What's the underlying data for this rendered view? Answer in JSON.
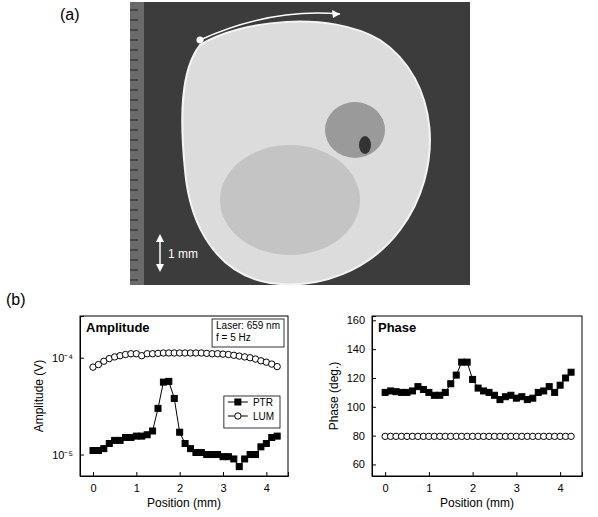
{
  "figure": {
    "panel_labels": [
      "(a)",
      "(b)"
    ],
    "photo": {
      "scale_bar_label": "1 mm"
    }
  },
  "chart_data": [
    {
      "type": "line",
      "title": "Amplitude",
      "x_label": "Position (mm)",
      "y_label": "Amplitude (V)",
      "annotations": [
        "Laser: 659 nm",
        "f = 5 Hz"
      ],
      "log": "y",
      "legend": "right",
      "x": [
        0,
        0.125,
        0.25,
        0.375,
        0.5,
        0.625,
        0.75,
        0.875,
        1.0,
        1.125,
        1.25,
        1.375,
        1.5,
        1.625,
        1.75,
        1.875,
        2.0,
        2.125,
        2.25,
        2.375,
        2.5,
        2.625,
        2.75,
        2.875,
        3.0,
        3.125,
        3.25,
        3.375,
        3.5,
        3.625,
        3.75,
        3.875,
        4.0,
        4.125,
        4.25
      ],
      "xlim": [
        -0.3,
        4.5
      ],
      "xticks": [
        0,
        1,
        2,
        3,
        4
      ],
      "ylim": [
        6e-06,
        0.00027
      ],
      "yticks": [
        {
          "value": 1e-05,
          "label": "10⁻⁵"
        },
        {
          "value": 0.0001,
          "label": "10⁻⁴"
        }
      ],
      "series": [
        {
          "name": "PTR",
          "color": "#000000",
          "marker": "square",
          "line_style": "solid",
          "values": [
            1.1e-05,
            1.1e-05,
            1.15e-05,
            1.3e-05,
            1.4e-05,
            1.4e-05,
            1.5e-05,
            1.5e-05,
            1.55e-05,
            1.55e-05,
            1.6e-05,
            1.75e-05,
            3e-05,
            5.6e-05,
            5.7e-05,
            3.8e-05,
            1.7e-05,
            1.3e-05,
            1.15e-05,
            1.05e-05,
            1.05e-05,
            1e-05,
            1e-05,
            1e-05,
            9.5e-06,
            9.5e-06,
            9e-06,
            7.5e-06,
            9e-06,
            1e-05,
            1e-05,
            1.2e-05,
            1.3e-05,
            1.5e-05,
            1.55e-05
          ]
        },
        {
          "name": "LUM",
          "color": "#000000",
          "marker": "circle-open",
          "line_style": "solid",
          "values": [
            8e-05,
            8.5e-05,
            9.2e-05,
            9.8e-05,
            0.000102,
            0.000105,
            0.000108,
            0.00011,
            0.00011,
            0.000105,
            0.00011,
            0.00011,
            0.000111,
            0.000112,
            0.000112,
            0.000112,
            0.000112,
            0.000112,
            0.000112,
            0.000112,
            0.000112,
            0.000111,
            0.00011,
            0.00011,
            0.000109,
            0.000108,
            0.000106,
            0.000104,
            0.000102,
            0.0001,
            9.7e-05,
            9.3e-05,
            9e-05,
            8.6e-05,
            8.1e-05
          ]
        }
      ]
    },
    {
      "type": "line",
      "title": "Phase",
      "x_label": "Position (mm)",
      "y_label": "Phase (deg.)",
      "x": [
        0,
        0.125,
        0.25,
        0.375,
        0.5,
        0.625,
        0.75,
        0.875,
        1.0,
        1.125,
        1.25,
        1.375,
        1.5,
        1.625,
        1.75,
        1.875,
        2.0,
        2.125,
        2.25,
        2.375,
        2.5,
        2.625,
        2.75,
        2.875,
        3.0,
        3.125,
        3.25,
        3.375,
        3.5,
        3.625,
        3.75,
        3.875,
        4.0,
        4.125,
        4.25
      ],
      "xlim": [
        -0.3,
        4.5
      ],
      "xticks": [
        0,
        1,
        2,
        3,
        4
      ],
      "ylim": [
        52,
        163
      ],
      "yticks": [
        60,
        80,
        100,
        120,
        140,
        160
      ],
      "series": [
        {
          "color": "#000000",
          "marker": "square",
          "line_style": "solid",
          "values": [
            110,
            111,
            110.5,
            110,
            110,
            111,
            114,
            112,
            110,
            108,
            108,
            110,
            116,
            122,
            131,
            131,
            119,
            113,
            111,
            110,
            108,
            105,
            107,
            108,
            106,
            107,
            105,
            106,
            110,
            111,
            114,
            110,
            115,
            120,
            124
          ]
        },
        {
          "color": "#000000",
          "marker": "circle-open",
          "line_style": "solid",
          "values": [
            79.5,
            79.5,
            79.5,
            79.5,
            79.5,
            79.5,
            79.5,
            79.5,
            79.5,
            79.5,
            79.5,
            79.5,
            79.5,
            79.5,
            79.5,
            79.5,
            79.5,
            79.5,
            79.5,
            79.5,
            79.5,
            79.5,
            79.5,
            79.5,
            79.5,
            79.5,
            79.5,
            79.5,
            79.5,
            79.5,
            79.5,
            79.5,
            79.5,
            79.5,
            79.5
          ]
        }
      ]
    }
  ]
}
